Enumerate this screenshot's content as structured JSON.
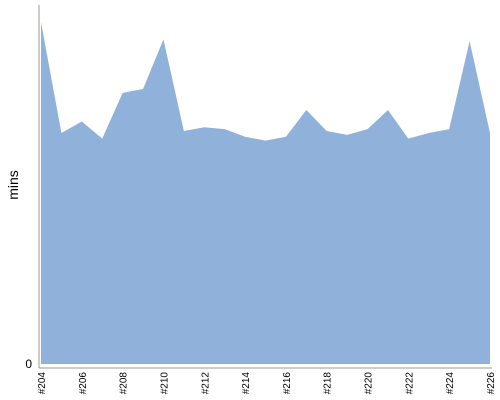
{
  "chart_data": {
    "type": "area",
    "ylabel": "mins",
    "xlabel": "",
    "title": "",
    "categories": [
      "#204",
      "#205",
      "#206",
      "#207",
      "#208",
      "#209",
      "#210",
      "#211",
      "#212",
      "#213",
      "#214",
      "#215",
      "#216",
      "#217",
      "#218",
      "#219",
      "#220",
      "#221",
      "#222",
      "#223",
      "#224",
      "#225",
      "#226"
    ],
    "tick_labels": [
      "#204",
      "#206",
      "#208",
      "#210",
      "#212",
      "#214",
      "#216",
      "#218",
      "#220",
      "#222",
      "#224",
      "#226"
    ],
    "y_tick_labels": [
      "0"
    ],
    "values": [
      8.95,
      6.05,
      6.35,
      5.9,
      7.1,
      7.2,
      8.5,
      6.1,
      6.2,
      6.15,
      5.95,
      5.85,
      5.95,
      6.65,
      6.1,
      6.0,
      6.15,
      6.65,
      5.9,
      6.05,
      6.15,
      8.45,
      6.05
    ],
    "ylim": [
      0,
      9.4
    ],
    "grid": false,
    "colors": {
      "area_fill": "#8fb1da",
      "axis": "#999999",
      "text": "#000000"
    }
  }
}
